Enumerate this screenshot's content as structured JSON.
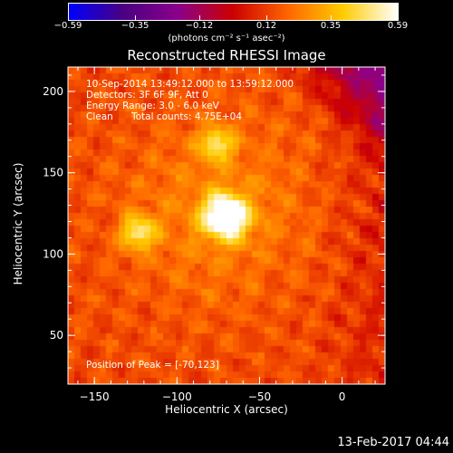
{
  "colorbar": {
    "ticks": [
      -0.59,
      -0.35,
      -0.12,
      0.12,
      0.35,
      0.59
    ],
    "tick_labels": [
      "−0.59",
      "−0.35",
      "−0.12",
      "0.12",
      "0.35",
      "0.59"
    ],
    "unit_label": "(photons cm⁻² s⁻¹ asec⁻²)",
    "range": [
      -0.59,
      0.59
    ],
    "palette": [
      "#0000ff",
      "#4b0082",
      "#8b008b",
      "#cc0000",
      "#ff6600",
      "#ffcc00",
      "#ffffff"
    ]
  },
  "chart_data": {
    "type": "heatmap",
    "title": "Reconstructed RHESSI Image",
    "xlabel": "Heliocentric X (arcsec)",
    "ylabel": "Heliocentric Y (arcsec)",
    "xlim": [
      -166,
      26
    ],
    "ylim": [
      20,
      215
    ],
    "xticks": [
      -150,
      -100,
      -50,
      0
    ],
    "xtick_labels": [
      "−150",
      "−100",
      "−50",
      "0"
    ],
    "yticks": [
      50,
      100,
      150,
      200
    ],
    "ytick_labels": [
      "50",
      "100",
      "150",
      "200"
    ],
    "sources": [
      {
        "x": -70,
        "y": 123,
        "intensity": 0.59
      },
      {
        "x": -76,
        "y": 168,
        "intensity": 0.3
      },
      {
        "x": -123,
        "y": 113,
        "intensity": 0.34
      }
    ],
    "annotations": {
      "time": "10-Sep-2014 13:49:12.000 to 13:59:12.000",
      "detectors": "Detectors: 3F 6F 9F, Att 0",
      "energy": "Energy Range: 3.0 - 6.0 keV",
      "method": "Clean",
      "counts": "Total counts: 4.75E+04",
      "peak": "Position of Peak = [-70,123]"
    }
  },
  "footer_timestamp": "13-Feb-2017 04:44"
}
